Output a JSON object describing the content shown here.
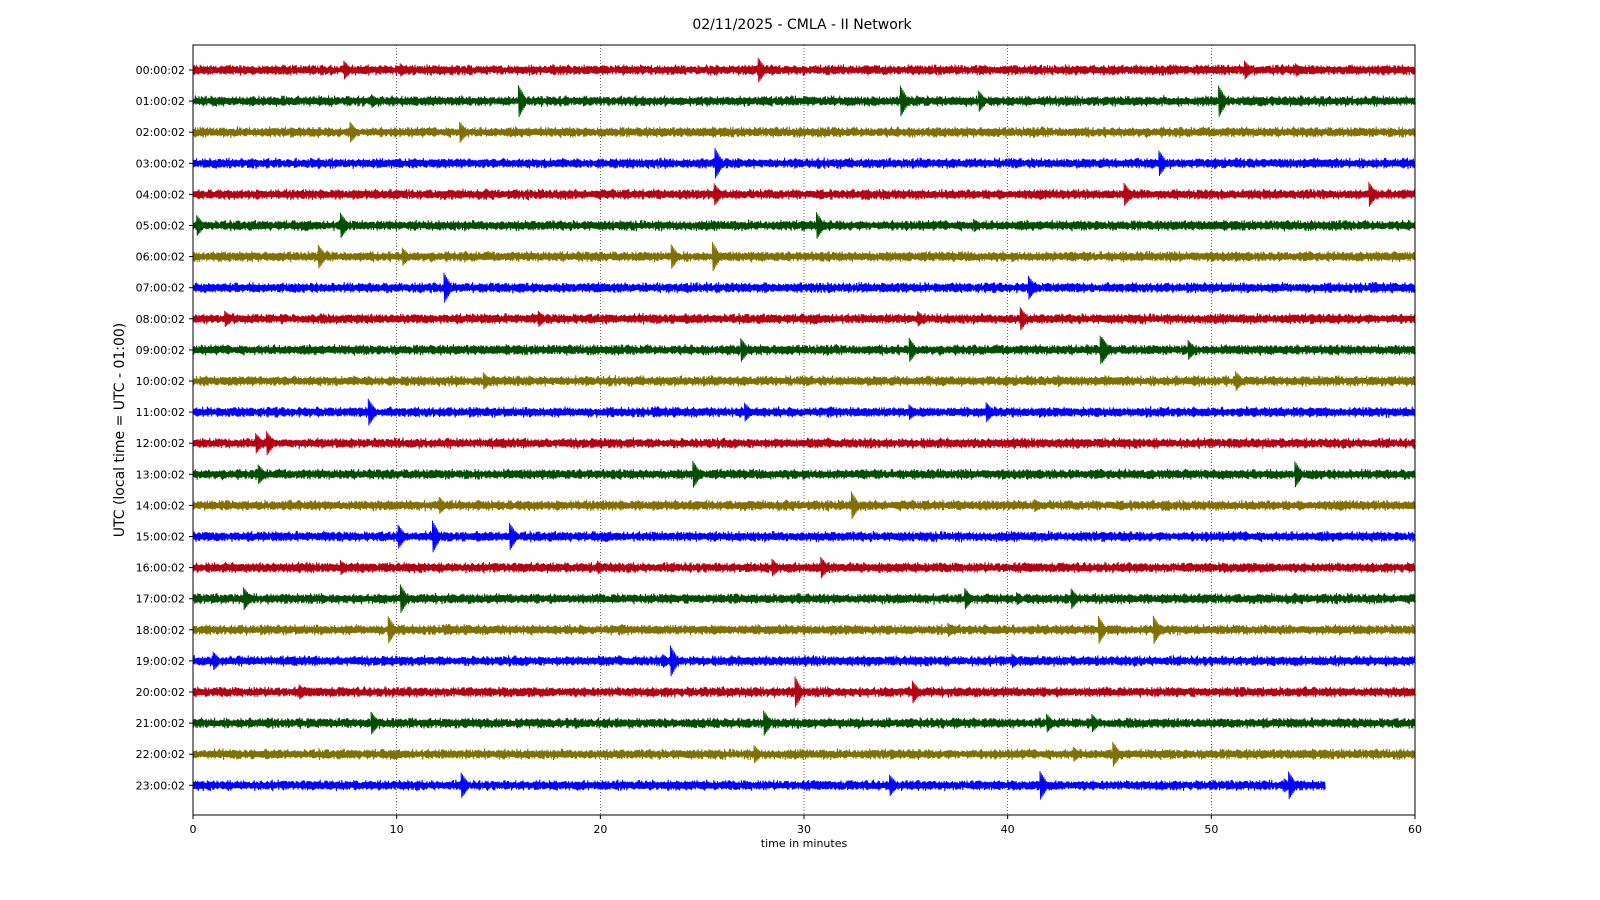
{
  "chart_data": {
    "type": "line",
    "title": "02/11/2025 - CMLA - II Network",
    "xlabel": "time in minutes",
    "ylabel": "UTC (local time = UTC - 01:00)",
    "xlim": [
      0,
      60
    ],
    "x_ticks": [
      "0",
      "10",
      "20",
      "30",
      "40",
      "50",
      "60"
    ],
    "grid": "vertical-dotted",
    "legend": "none",
    "colors": [
      "#b30012",
      "#004d00",
      "#807000",
      "#0000ff"
    ],
    "rows": [
      {
        "label": "00:00:02",
        "end": 60
      },
      {
        "label": "01:00:02",
        "end": 60
      },
      {
        "label": "02:00:02",
        "end": 60
      },
      {
        "label": "03:00:02",
        "end": 60
      },
      {
        "label": "04:00:02",
        "end": 60
      },
      {
        "label": "05:00:02",
        "end": 60
      },
      {
        "label": "06:00:02",
        "end": 60
      },
      {
        "label": "07:00:02",
        "end": 60
      },
      {
        "label": "08:00:02",
        "end": 60
      },
      {
        "label": "09:00:02",
        "end": 60
      },
      {
        "label": "10:00:02",
        "end": 60
      },
      {
        "label": "11:00:02",
        "end": 60
      },
      {
        "label": "12:00:02",
        "end": 60
      },
      {
        "label": "13:00:02",
        "end": 60
      },
      {
        "label": "14:00:02",
        "end": 60
      },
      {
        "label": "15:00:02",
        "end": 60
      },
      {
        "label": "16:00:02",
        "end": 60
      },
      {
        "label": "17:00:02",
        "end": 60
      },
      {
        "label": "18:00:02",
        "end": 60
      },
      {
        "label": "19:00:02",
        "end": 60
      },
      {
        "label": "20:00:02",
        "end": 60
      },
      {
        "label": "21:00:02",
        "end": 60
      },
      {
        "label": "22:00:02",
        "end": 60
      },
      {
        "label": "23:00:02",
        "end": 55.6
      }
    ]
  }
}
